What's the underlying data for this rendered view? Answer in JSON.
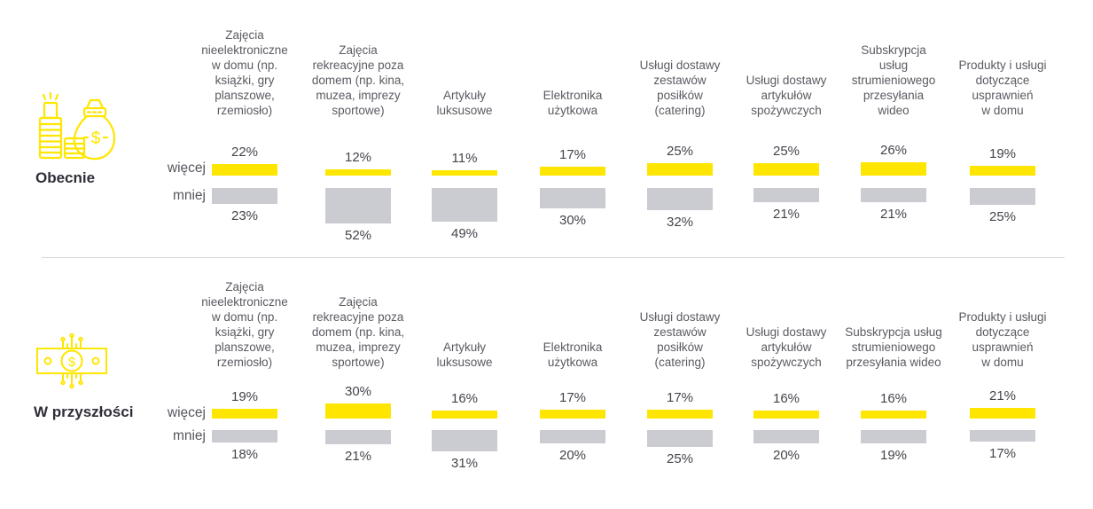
{
  "colors": {
    "accent_yellow": "#FFE600",
    "bar_gray": "#CBCBD2",
    "header_text": "#5a5a62",
    "value_text": "#44444c",
    "section_label_text": "#2e2e38",
    "divider": "#d6d6d6",
    "background": "#ffffff"
  },
  "icons": [
    {
      "name": "money-bag-coins-icon",
      "section": "Obecnie"
    },
    {
      "name": "banknote-circuit-icon",
      "section": "W przyszłości"
    }
  ],
  "chart_data": {
    "type": "bar",
    "unit": "%",
    "grid": false,
    "legend_position": "row-labels-left",
    "categories": [
      "Zajęcia nieelektroniczne w domu (np. książki, gry planszowe, rzemiosło)",
      "Zajęcia rekreacyjne poza domem (np. kina, muzea, imprezy sportowe)",
      "Artykuły luksusowe",
      "Elektronika użytkowa",
      "Usługi dostawy zestawów posiłków (catering)",
      "Usługi dostawy artykułów spożywczych",
      "Subskrypcja usług strumieniowego przesyłania wideo",
      "Produkty i usługi dotyczące usprawnień w domu"
    ],
    "sections": [
      {
        "name": "Obecnie",
        "icon": "money-bag-coins-icon",
        "category_labels_wrapped": [
          "Zajęcia\nnieelektroniczne\nw domu (np.\nksiążki, gry\nplanszowe,\nrzemiosło)",
          "Zajęcia\nrekreacyjne poza\ndomem (np. kina,\nmuzea, imprezy\nsportowe)",
          "Artykuły\nluksusowe",
          "Elektronika\nużytkowa",
          "Usługi dostawy\nzestawów\nposiłków\n(catering)",
          "Usługi dostawy\nartykułów\nspożywczych",
          "Subskrypcja\nusług\nstrumieniowego\nprzesyłania\nwideo",
          "Produkty i usługi\ndotyczące\nusprawnień\nw domu"
        ],
        "series": [
          {
            "name": "więcej",
            "color": "#FFE600",
            "values": [
              22,
              12,
              11,
              17,
              25,
              25,
              26,
              19
            ]
          },
          {
            "name": "mniej",
            "color": "#CBCBD2",
            "values": [
              23,
              52,
              49,
              30,
              32,
              21,
              21,
              25
            ]
          }
        ]
      },
      {
        "name": "W przyszłości",
        "icon": "banknote-circuit-icon",
        "category_labels_wrapped": [
          "Zajęcia\nnieelektroniczne\nw domu (np.\nksiążki, gry\nplanszowe,\nrzemiosło)",
          "Zajęcia\nrekreacyjne poza\ndomem (np. kina,\nmuzea, imprezy\nsportowe)",
          "Artykuły\nluksusowe",
          "Elektronika\nużytkowa",
          "Usługi dostawy\nzestawów\nposiłków\n(catering)",
          "Usługi dostawy\nartykułów\nspożywczych",
          "Subskrypcja usług\nstrumieniowego\nprzesyłania wideo",
          "Produkty i usługi\ndotyczące\nusprawnień\nw domu"
        ],
        "series": [
          {
            "name": "więcej",
            "color": "#FFE600",
            "values": [
              19,
              30,
              16,
              17,
              17,
              16,
              16,
              21
            ]
          },
          {
            "name": "mniej",
            "color": "#CBCBD2",
            "values": [
              18,
              21,
              31,
              20,
              25,
              20,
              19,
              17
            ]
          }
        ]
      }
    ]
  }
}
